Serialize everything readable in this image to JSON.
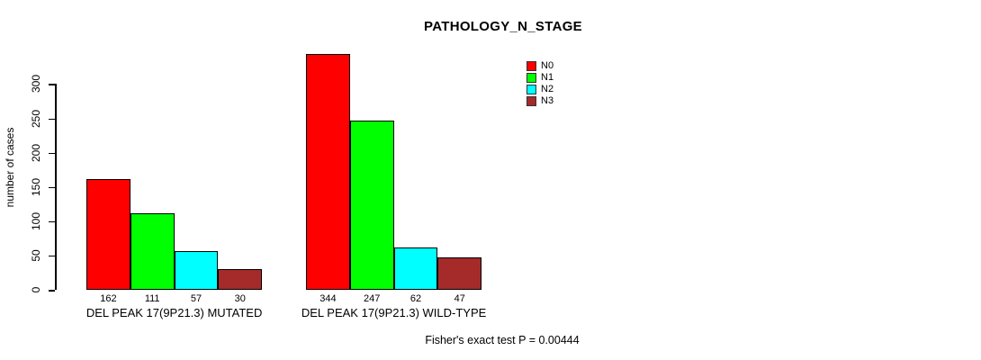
{
  "chart_data": {
    "type": "bar",
    "title": "PATHOLOGY_N_STAGE",
    "ylabel": "number of cases",
    "xlabel": "",
    "ylim": [
      0,
      344
    ],
    "yticks": [
      0,
      50,
      100,
      150,
      200,
      250,
      300
    ],
    "grid": false,
    "legend_position": "top-right",
    "series": [
      "N0",
      "N1",
      "N2",
      "N3"
    ],
    "colors": [
      "#FF0000",
      "#00FF00",
      "#00FFFF",
      "#A52A2A"
    ],
    "groups": [
      {
        "label": "DEL PEAK 17(9P21.3) MUTATED",
        "values": [
          162,
          111,
          57,
          30
        ]
      },
      {
        "label": "DEL PEAK 17(9P21.3) WILD-TYPE",
        "values": [
          344,
          247,
          62,
          47
        ]
      }
    ],
    "annotation": "Fisher's exact test P = 0.00444"
  }
}
